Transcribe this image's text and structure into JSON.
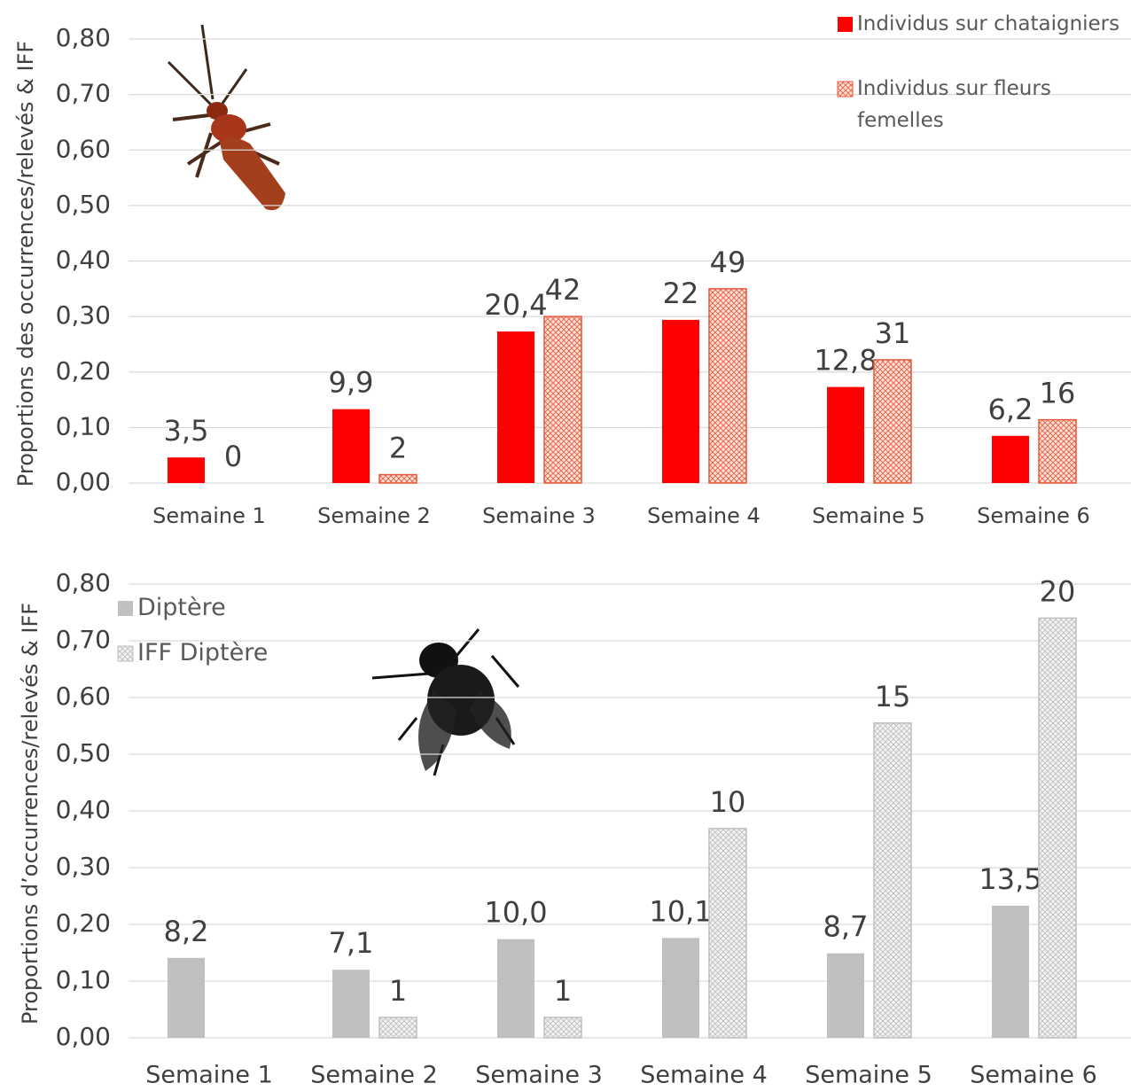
{
  "chart_data": [
    {
      "type": "bar",
      "y_label": "Proportions des occurrences/relevés & IFF",
      "categories": [
        "Semaine 1",
        "Semaine 2",
        "Semaine 3",
        "Semaine 4",
        "Semaine 5",
        "Semaine 6"
      ],
      "series": [
        {
          "name": "Individus sur chataigniers",
          "color": "#ff0000",
          "hatched": false,
          "values": [
            0.046,
            0.133,
            0.273,
            0.294,
            0.173,
            0.085
          ],
          "labels": [
            "3,5",
            "9,9",
            "20,4",
            "22",
            "12,8",
            "6,2"
          ]
        },
        {
          "name": "Individus sur fleurs femelles",
          "color": "#e8573a",
          "hatched": true,
          "values": [
            0,
            0.015,
            0.3,
            0.35,
            0.222,
            0.114
          ],
          "labels": [
            "0",
            "2",
            "42",
            "49",
            "31",
            "16"
          ]
        }
      ],
      "ylim": [
        0,
        0.8
      ],
      "yticks": [
        {
          "value": 0,
          "label": "0,00"
        },
        {
          "value": 0.1,
          "label": "0,10"
        },
        {
          "value": 0.2,
          "label": "0,20"
        },
        {
          "value": 0.3,
          "label": "0,30"
        },
        {
          "value": 0.4,
          "label": "0,40"
        },
        {
          "value": 0.5,
          "label": "0,50"
        },
        {
          "value": 0.6,
          "label": "0,60"
        },
        {
          "value": 0.7,
          "label": "0,70"
        },
        {
          "value": 0.8,
          "label": "0,80"
        }
      ],
      "grid": true,
      "legend": "top-right"
    },
    {
      "type": "bar",
      "y_label": "Proportions d’occurrences/relevés & IFF",
      "categories": [
        "Semaine 1",
        "Semaine 2",
        "Semaine 3",
        "Semaine 4",
        "Semaine 5",
        "Semaine 6"
      ],
      "series": [
        {
          "name": "Diptère",
          "color": "#bfbfbf",
          "hatched": false,
          "values": [
            0.141,
            0.12,
            0.174,
            0.176,
            0.149,
            0.233
          ],
          "labels": [
            "8,2",
            "7,1",
            "10,0",
            "10,1",
            "8,7",
            "13,5"
          ]
        },
        {
          "name": "IFF Diptère",
          "color": "#bfbfbf",
          "hatched": true,
          "values": [
            0,
            0.036,
            0.036,
            0.369,
            0.555,
            0.74
          ],
          "labels": [
            "",
            "1",
            "1",
            "10",
            "15",
            "20"
          ]
        }
      ],
      "ylim": [
        0,
        0.8
      ],
      "yticks": [
        {
          "value": 0,
          "label": "0,00"
        },
        {
          "value": 0.1,
          "label": "0,10"
        },
        {
          "value": 0.2,
          "label": "0,20"
        },
        {
          "value": 0.3,
          "label": "0,30"
        },
        {
          "value": 0.4,
          "label": "0,40"
        },
        {
          "value": 0.5,
          "label": "0,50"
        },
        {
          "value": 0.6,
          "label": "0,60"
        },
        {
          "value": 0.7,
          "label": "0,70"
        },
        {
          "value": 0.8,
          "label": "0,80"
        }
      ],
      "grid": true,
      "legend": "top-left"
    }
  ]
}
